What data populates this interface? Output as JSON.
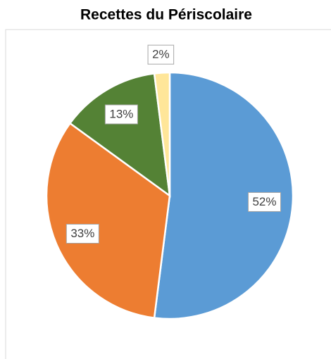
{
  "chart_data": {
    "type": "pie",
    "title": "Recettes du Périscolaire",
    "values": [
      52,
      33,
      13,
      2
    ],
    "value_labels": [
      "52%",
      "33%",
      "13%",
      "2%"
    ],
    "colors": [
      "#5b9bd5",
      "#ed7d31",
      "#548235",
      "#ffe699"
    ]
  }
}
